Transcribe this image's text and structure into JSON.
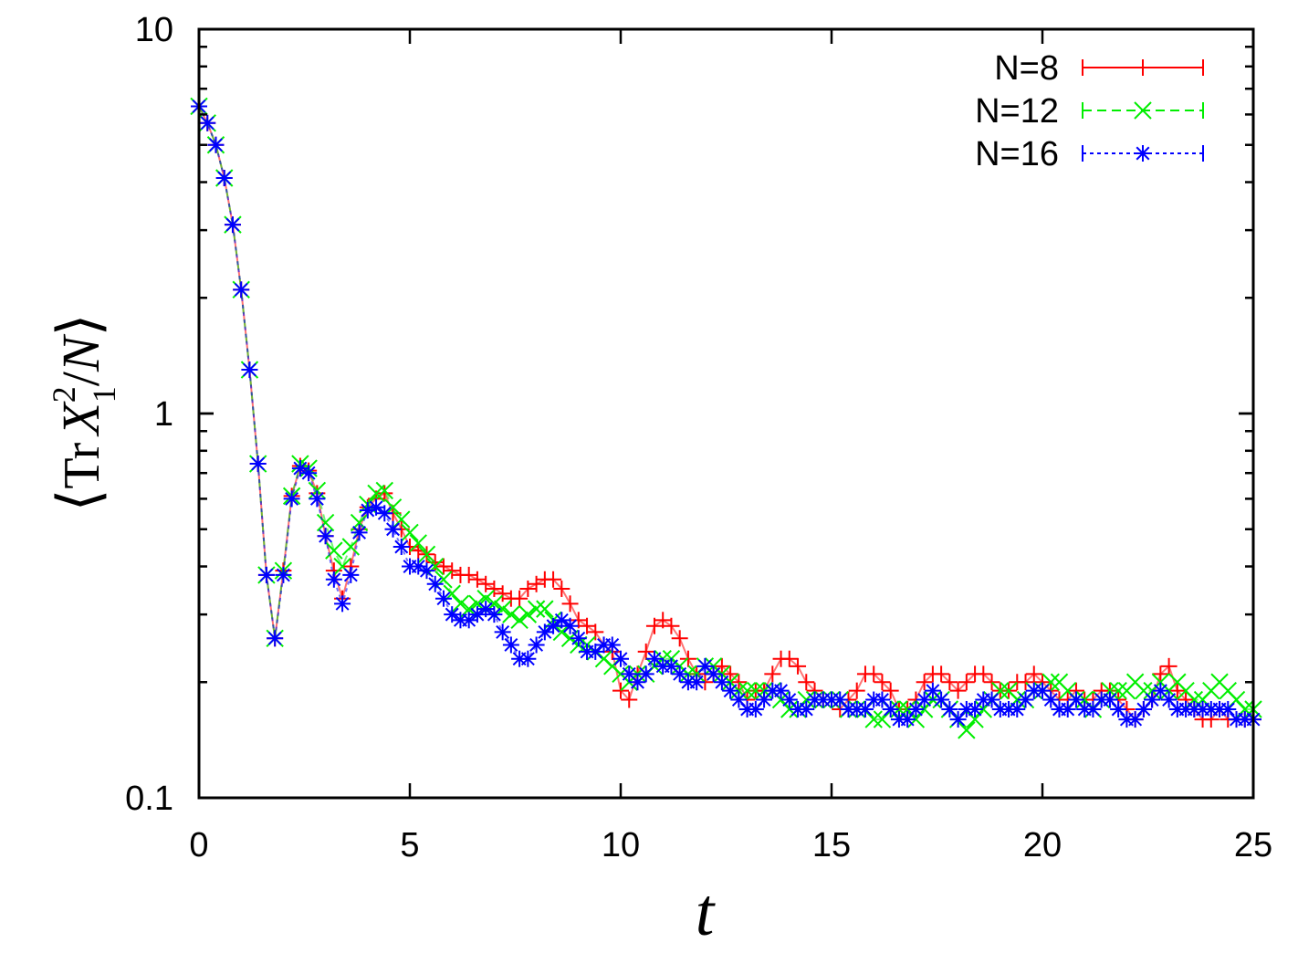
{
  "chart_data": {
    "type": "scatter",
    "xlabel": "t",
    "ylabel": {
      "open": "⟨",
      "tr": "Tr",
      "var": "X",
      "sup": "2",
      "sub": "1",
      "slash": "/",
      "n": "N",
      "close": "⟩"
    },
    "xlim": [
      0,
      25
    ],
    "ylim": [
      0.1,
      10
    ],
    "yscale": "log",
    "grid": false,
    "legend_position": "top-right",
    "x_ticks": [
      0,
      5,
      10,
      15,
      20,
      25
    ],
    "x_tick_labels": [
      "0",
      "5",
      "10",
      "15",
      "20",
      "25"
    ],
    "y_major_ticks": [
      0.1,
      1,
      10
    ],
    "y_tick_labels": [
      "0.1",
      "1",
      "10"
    ],
    "x": [
      0.0,
      0.2,
      0.4,
      0.6,
      0.8,
      1.0,
      1.2,
      1.4,
      1.6,
      1.8,
      2.0,
      2.2,
      2.4,
      2.6,
      2.8,
      3.0,
      3.2,
      3.4,
      3.6,
      3.8,
      4.0,
      4.2,
      4.4,
      4.6,
      4.8,
      5.0,
      5.2,
      5.4,
      5.6,
      5.8,
      6.0,
      6.2,
      6.4,
      6.6,
      6.8,
      7.0,
      7.2,
      7.4,
      7.6,
      7.8,
      8.0,
      8.2,
      8.4,
      8.6,
      8.8,
      9.0,
      9.2,
      9.4,
      9.6,
      9.8,
      10.0,
      10.2,
      10.4,
      10.6,
      10.8,
      11.0,
      11.2,
      11.4,
      11.6,
      11.8,
      12.0,
      12.2,
      12.4,
      12.6,
      12.8,
      13.0,
      13.2,
      13.4,
      13.6,
      13.8,
      14.0,
      14.2,
      14.4,
      14.6,
      14.8,
      15.0,
      15.2,
      15.4,
      15.6,
      15.8,
      16.0,
      16.2,
      16.4,
      16.6,
      16.8,
      17.0,
      17.2,
      17.4,
      17.6,
      17.8,
      18.0,
      18.2,
      18.4,
      18.6,
      18.8,
      19.0,
      19.2,
      19.4,
      19.6,
      19.8,
      20.0,
      20.2,
      20.4,
      20.6,
      20.8,
      21.0,
      21.2,
      21.4,
      21.6,
      21.8,
      22.0,
      22.2,
      22.4,
      22.6,
      22.8,
      23.0,
      23.2,
      23.4,
      23.6,
      23.8,
      24.0,
      24.2,
      24.4,
      24.6,
      24.8,
      25.0
    ],
    "series": [
      {
        "name": "N=8",
        "color": "#ff0000",
        "marker": "plus",
        "line": "solid",
        "values": [
          6.3,
          5.7,
          5.0,
          4.1,
          3.1,
          2.1,
          1.3,
          0.74,
          0.38,
          0.26,
          0.39,
          0.61,
          0.73,
          0.71,
          0.62,
          0.48,
          0.39,
          0.33,
          0.4,
          0.5,
          0.57,
          0.6,
          0.62,
          0.55,
          0.5,
          0.45,
          0.44,
          0.43,
          0.41,
          0.4,
          0.39,
          0.38,
          0.38,
          0.37,
          0.36,
          0.35,
          0.34,
          0.33,
          0.33,
          0.35,
          0.36,
          0.37,
          0.37,
          0.35,
          0.32,
          0.29,
          0.28,
          0.27,
          0.25,
          0.24,
          0.19,
          0.18,
          0.21,
          0.24,
          0.28,
          0.29,
          0.28,
          0.26,
          0.23,
          0.21,
          0.2,
          0.21,
          0.22,
          0.21,
          0.2,
          0.18,
          0.19,
          0.19,
          0.21,
          0.23,
          0.23,
          0.22,
          0.2,
          0.19,
          0.18,
          0.18,
          0.17,
          0.18,
          0.19,
          0.21,
          0.21,
          0.2,
          0.19,
          0.17,
          0.17,
          0.18,
          0.2,
          0.21,
          0.21,
          0.2,
          0.19,
          0.2,
          0.21,
          0.21,
          0.2,
          0.19,
          0.19,
          0.2,
          0.2,
          0.21,
          0.2,
          0.19,
          0.18,
          0.18,
          0.19,
          0.18,
          0.18,
          0.19,
          0.19,
          0.18,
          0.17,
          0.16,
          0.17,
          0.18,
          0.21,
          0.22,
          0.19,
          0.18,
          0.17,
          0.16,
          0.16,
          0.17,
          0.16,
          0.16,
          0.16,
          0.16
        ]
      },
      {
        "name": "N=12",
        "color": "#00ee00",
        "marker": "x",
        "line": "dashed",
        "values": [
          6.3,
          5.7,
          5.0,
          4.1,
          3.1,
          2.1,
          1.3,
          0.74,
          0.38,
          0.26,
          0.39,
          0.61,
          0.74,
          0.72,
          0.63,
          0.52,
          0.44,
          0.4,
          0.45,
          0.52,
          0.58,
          0.62,
          0.63,
          0.57,
          0.53,
          0.49,
          0.46,
          0.43,
          0.4,
          0.37,
          0.34,
          0.32,
          0.31,
          0.32,
          0.33,
          0.32,
          0.31,
          0.3,
          0.29,
          0.3,
          0.31,
          0.31,
          0.29,
          0.27,
          0.26,
          0.25,
          0.25,
          0.24,
          0.23,
          0.22,
          0.21,
          0.2,
          0.21,
          0.21,
          0.22,
          0.23,
          0.23,
          0.22,
          0.21,
          0.21,
          0.22,
          0.22,
          0.21,
          0.2,
          0.19,
          0.19,
          0.19,
          0.19,
          0.19,
          0.18,
          0.17,
          0.17,
          0.18,
          0.18,
          0.18,
          0.18,
          0.18,
          0.17,
          0.17,
          0.17,
          0.16,
          0.16,
          0.17,
          0.17,
          0.17,
          0.16,
          0.17,
          0.18,
          0.18,
          0.17,
          0.16,
          0.15,
          0.16,
          0.17,
          0.18,
          0.19,
          0.19,
          0.18,
          0.18,
          0.19,
          0.19,
          0.2,
          0.2,
          0.19,
          0.18,
          0.18,
          0.17,
          0.18,
          0.19,
          0.19,
          0.19,
          0.2,
          0.19,
          0.19,
          0.2,
          0.19,
          0.2,
          0.19,
          0.18,
          0.18,
          0.19,
          0.2,
          0.19,
          0.18,
          0.17,
          0.17
        ]
      },
      {
        "name": "N=16",
        "color": "#0000ff",
        "marker": "star",
        "line": "dotted",
        "values": [
          6.3,
          5.7,
          5.0,
          4.1,
          3.1,
          2.1,
          1.3,
          0.74,
          0.38,
          0.26,
          0.38,
          0.6,
          0.72,
          0.7,
          0.6,
          0.48,
          0.37,
          0.32,
          0.38,
          0.49,
          0.56,
          0.57,
          0.55,
          0.5,
          0.45,
          0.4,
          0.4,
          0.39,
          0.36,
          0.33,
          0.3,
          0.29,
          0.29,
          0.3,
          0.31,
          0.3,
          0.27,
          0.25,
          0.23,
          0.23,
          0.25,
          0.27,
          0.28,
          0.29,
          0.28,
          0.26,
          0.24,
          0.24,
          0.25,
          0.25,
          0.23,
          0.21,
          0.2,
          0.21,
          0.23,
          0.22,
          0.22,
          0.21,
          0.2,
          0.2,
          0.22,
          0.21,
          0.2,
          0.19,
          0.18,
          0.17,
          0.17,
          0.18,
          0.19,
          0.19,
          0.18,
          0.17,
          0.17,
          0.18,
          0.18,
          0.18,
          0.18,
          0.17,
          0.17,
          0.17,
          0.18,
          0.18,
          0.17,
          0.16,
          0.16,
          0.17,
          0.18,
          0.19,
          0.18,
          0.17,
          0.16,
          0.17,
          0.17,
          0.18,
          0.18,
          0.17,
          0.17,
          0.17,
          0.18,
          0.19,
          0.19,
          0.18,
          0.17,
          0.17,
          0.18,
          0.17,
          0.17,
          0.18,
          0.18,
          0.17,
          0.16,
          0.16,
          0.17,
          0.18,
          0.19,
          0.18,
          0.17,
          0.17,
          0.17,
          0.17,
          0.17,
          0.17,
          0.17,
          0.16,
          0.16,
          0.16
        ]
      }
    ]
  }
}
